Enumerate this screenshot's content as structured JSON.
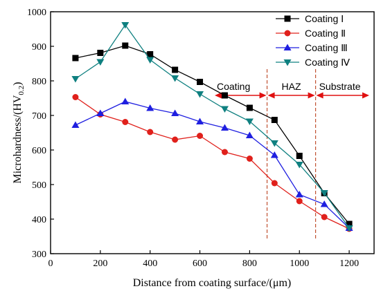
{
  "chart_data": {
    "type": "line",
    "xlabel": "Distance from coating surface/(μm)",
    "ylabel_main": "Microhardness/(HV",
    "ylabel_sub": "0.2",
    "ylabel_close": ")",
    "xlim": [
      0,
      1300
    ],
    "ylim": [
      300,
      1000
    ],
    "xticks": [
      0,
      200,
      400,
      600,
      800,
      1000,
      1200
    ],
    "yticks": [
      300,
      400,
      500,
      600,
      700,
      800,
      900,
      1000
    ],
    "legend_position": "top-right",
    "grid": false,
    "x": [
      100,
      200,
      300,
      400,
      500,
      600,
      700,
      800,
      900,
      1000,
      1100,
      1200
    ],
    "series": [
      {
        "name": "Coating Ⅰ",
        "color": "#000000",
        "marker": "square",
        "values": [
          866,
          881,
          902,
          877,
          832,
          797,
          758,
          722,
          687,
          583,
          475,
          386
        ]
      },
      {
        "name": "Coating Ⅱ",
        "color": "#e0201b",
        "marker": "circle",
        "values": [
          753,
          703,
          681,
          652,
          630,
          641,
          594,
          575,
          504,
          452,
          406,
          372
        ]
      },
      {
        "name": "Coating Ⅲ",
        "color": "#1f1fe0",
        "marker": "triangle-up",
        "values": [
          672,
          706,
          740,
          721,
          706,
          682,
          664,
          642,
          585,
          471,
          443,
          374
        ]
      },
      {
        "name": "Coating Ⅳ",
        "color": "#0f8080",
        "marker": "triangle-down",
        "values": [
          806,
          855,
          962,
          861,
          808,
          762,
          719,
          683,
          620,
          558,
          476,
          374
        ]
      }
    ],
    "regions": {
      "coating_label": "Coating",
      "haz_label": "HAZ",
      "substrate_label": "Substrate",
      "boundaries_x": [
        870,
        1065
      ],
      "boundary_color": "#c05030",
      "arrow_color": "#e01010"
    }
  }
}
